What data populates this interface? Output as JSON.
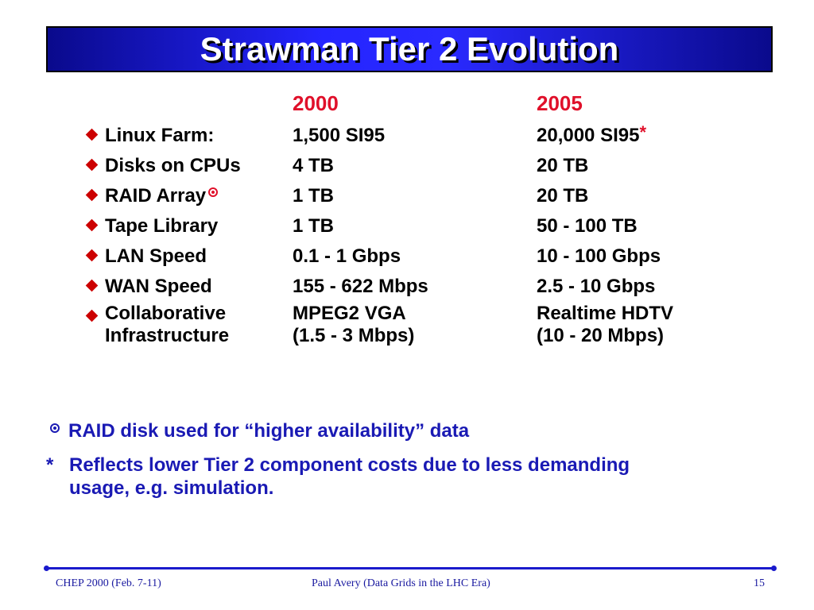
{
  "title": "Strawman Tier 2 Evolution",
  "years": [
    "2000",
    "2005"
  ],
  "rows": [
    {
      "label": "Linux Farm:",
      "v2000": "1,500 SI95",
      "v2005": "20,000 SI95",
      "mark2005": "*"
    },
    {
      "label": "Disks on CPUs",
      "v2000": "4 TB",
      "v2005": "20 TB"
    },
    {
      "label": "RAID Array",
      "label_mark": "⊙",
      "v2000": "1 TB",
      "v2005": "20 TB"
    },
    {
      "label": "Tape Library",
      "v2000": "1 TB",
      "v2005": "50 - 100 TB"
    },
    {
      "label": "LAN Speed",
      "v2000": "0.1 - 1 Gbps",
      "v2005": "10 - 100 Gbps"
    },
    {
      "label": "WAN Speed",
      "v2000": "155 - 622 Mbps",
      "v2005": "2.5 - 10 Gbps"
    },
    {
      "label": "Collaborative",
      "label2": "Infrastructure",
      "v2000": "MPEG2 VGA",
      "v2000b": "(1.5 - 3 Mbps)",
      "v2005": "Realtime HDTV",
      "v2005b": "(10 - 20 Mbps)"
    }
  ],
  "notes": {
    "raid_symbol": "⊙",
    "raid_text": "RAID disk used for “higher availability” data",
    "star_symbol": "*",
    "star_line1": "Reflects lower Tier 2 component costs due to less demanding",
    "star_line2": "usage, e.g. simulation."
  },
  "footer": {
    "left": "CHEP 2000 (Feb. 7-11)",
    "center": "Paul Avery (Data Grids in the LHC Era)",
    "page": "15"
  },
  "colors": {
    "title_bar": "#2525ff",
    "year_red": "#e0102a",
    "bullet_red": "#cc0000",
    "note_blue": "#1a1ab4",
    "footer_blue": "#1a1aa0"
  }
}
